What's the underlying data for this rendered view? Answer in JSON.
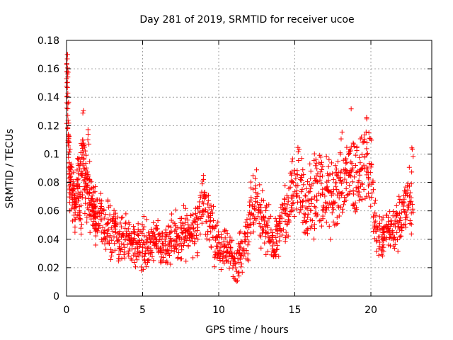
{
  "chart_data": {
    "type": "scatter",
    "title": "Day 281 of 2019, SRMTID for receiver ucoe",
    "xlabel": "GPS time / hours",
    "ylabel": "SRMTID / TECUs",
    "xlim": [
      0,
      24
    ],
    "ylim": [
      0,
      0.18
    ],
    "x_ticks": [
      "0",
      "5",
      "10",
      "15",
      "20"
    ],
    "x_tick_values": [
      0,
      5,
      10,
      15,
      20
    ],
    "y_ticks": [
      "0",
      "0.02",
      "0.04",
      "0.06",
      "0.08",
      "0.1",
      "0.12",
      "0.14",
      "0.16",
      "0.18"
    ],
    "y_tick_values": [
      0,
      0.02,
      0.04,
      0.06,
      0.08,
      0.1,
      0.12,
      0.14,
      0.16,
      0.18
    ],
    "grid": true,
    "marker": "+",
    "color": "#ff0000",
    "series": [
      {
        "name": "SRMTID",
        "x": [
          0.0,
          0.05,
          0.1,
          0.15,
          0.2,
          0.3,
          0.4,
          0.5,
          0.6,
          0.7,
          0.8,
          0.9,
          1.0,
          1.1,
          1.2,
          1.3,
          1.4,
          1.5,
          1.6,
          1.7,
          1.8,
          1.9,
          2.0,
          2.2,
          2.4,
          2.6,
          2.8,
          3.0,
          3.2,
          3.4,
          3.6,
          3.8,
          4.0,
          4.2,
          4.4,
          4.6,
          4.8,
          5.0,
          5.2,
          5.4,
          5.6,
          5.8,
          6.0,
          6.2,
          6.4,
          6.6,
          6.8,
          7.0,
          7.2,
          7.4,
          7.6,
          7.8,
          8.0,
          8.2,
          8.4,
          8.6,
          8.8,
          9.0,
          9.2,
          9.4,
          9.6,
          9.8,
          10.0,
          10.2,
          10.4,
          10.6,
          10.8,
          11.0,
          11.2,
          11.4,
          11.6,
          11.8,
          12.0,
          12.2,
          12.4,
          12.6,
          12.8,
          13.0,
          13.2,
          13.4,
          13.6,
          13.8,
          14.0,
          14.2,
          14.4,
          14.6,
          14.8,
          15.0,
          15.2,
          15.4,
          15.6,
          15.8,
          16.0,
          16.2,
          16.4,
          16.6,
          16.8,
          17.0,
          17.2,
          17.4,
          17.6,
          17.8,
          18.0,
          18.2,
          18.4,
          18.6,
          18.8,
          19.0,
          19.2,
          19.4,
          19.6,
          19.8,
          20.0,
          20.2,
          20.4,
          20.6,
          20.8,
          21.0,
          21.2,
          21.4,
          21.6,
          21.8,
          22.0,
          22.2,
          22.4,
          22.6,
          22.8
        ],
        "y": [
          0.14,
          0.16,
          0.13,
          0.1,
          0.08,
          0.085,
          0.07,
          0.065,
          0.06,
          0.075,
          0.08,
          0.07,
          0.09,
          0.1,
          0.085,
          0.08,
          0.09,
          0.075,
          0.07,
          0.06,
          0.065,
          0.055,
          0.05,
          0.055,
          0.05,
          0.045,
          0.05,
          0.04,
          0.045,
          0.04,
          0.035,
          0.04,
          0.038,
          0.036,
          0.04,
          0.035,
          0.038,
          0.036,
          0.035,
          0.034,
          0.036,
          0.038,
          0.04,
          0.035,
          0.036,
          0.04,
          0.042,
          0.045,
          0.04,
          0.038,
          0.042,
          0.045,
          0.044,
          0.046,
          0.05,
          0.052,
          0.06,
          0.065,
          0.06,
          0.055,
          0.045,
          0.04,
          0.038,
          0.035,
          0.033,
          0.032,
          0.03,
          0.025,
          0.022,
          0.03,
          0.035,
          0.04,
          0.05,
          0.06,
          0.065,
          0.07,
          0.055,
          0.05,
          0.045,
          0.04,
          0.038,
          0.04,
          0.045,
          0.05,
          0.055,
          0.06,
          0.07,
          0.075,
          0.08,
          0.07,
          0.065,
          0.06,
          0.065,
          0.07,
          0.075,
          0.08,
          0.07,
          0.075,
          0.065,
          0.07,
          0.072,
          0.075,
          0.08,
          0.078,
          0.085,
          0.09,
          0.085,
          0.08,
          0.088,
          0.095,
          0.1,
          0.09,
          0.085,
          0.06,
          0.045,
          0.04,
          0.045,
          0.05,
          0.048,
          0.05,
          0.046,
          0.05,
          0.055,
          0.06,
          0.065,
          0.07,
          0.08
        ],
        "spread": [
          0.02,
          0.02,
          0.025,
          0.02,
          0.015,
          0.015,
          0.012,
          0.012,
          0.012,
          0.015,
          0.02,
          0.02,
          0.025,
          0.02,
          0.02,
          0.018,
          0.02,
          0.018,
          0.015,
          0.012,
          0.012,
          0.012,
          0.012,
          0.012,
          0.012,
          0.012,
          0.012,
          0.012,
          0.012,
          0.012,
          0.012,
          0.012,
          0.01,
          0.01,
          0.01,
          0.012,
          0.012,
          0.012,
          0.012,
          0.01,
          0.012,
          0.012,
          0.012,
          0.012,
          0.012,
          0.012,
          0.015,
          0.015,
          0.012,
          0.012,
          0.012,
          0.012,
          0.012,
          0.012,
          0.012,
          0.015,
          0.015,
          0.015,
          0.015,
          0.015,
          0.012,
          0.012,
          0.01,
          0.01,
          0.01,
          0.01,
          0.008,
          0.008,
          0.008,
          0.01,
          0.012,
          0.015,
          0.015,
          0.015,
          0.015,
          0.015,
          0.015,
          0.012,
          0.012,
          0.012,
          0.012,
          0.012,
          0.012,
          0.015,
          0.015,
          0.015,
          0.015,
          0.02,
          0.02,
          0.02,
          0.02,
          0.02,
          0.02,
          0.025,
          0.025,
          0.02,
          0.02,
          0.02,
          0.02,
          0.02,
          0.02,
          0.02,
          0.02,
          0.02,
          0.025,
          0.025,
          0.025,
          0.02,
          0.02,
          0.02,
          0.02,
          0.02,
          0.02,
          0.015,
          0.012,
          0.012,
          0.012,
          0.012,
          0.012,
          0.012,
          0.012,
          0.012,
          0.015,
          0.015,
          0.018,
          0.02,
          0.025
        ]
      }
    ]
  }
}
